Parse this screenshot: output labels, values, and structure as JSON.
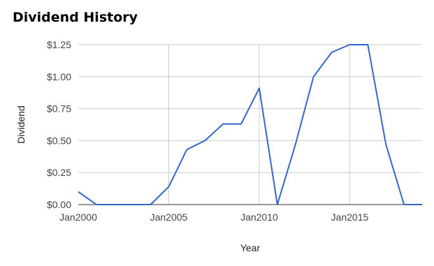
{
  "chart_data": {
    "type": "line",
    "title": "Dividend History",
    "xlabel": "Year",
    "ylabel": "Dividend",
    "ylim": [
      0,
      1.25
    ],
    "xlim": [
      2000,
      2019
    ],
    "y_ticks": [
      {
        "value": 0,
        "label": "$0.00"
      },
      {
        "value": 0.25,
        "label": "$0.25"
      },
      {
        "value": 0.5,
        "label": "$0.50"
      },
      {
        "value": 0.75,
        "label": "$0.75"
      },
      {
        "value": 1.0,
        "label": "$1.00"
      },
      {
        "value": 1.25,
        "label": "$1.25"
      }
    ],
    "x_ticks": [
      {
        "value": 2000,
        "label": "Jan2000"
      },
      {
        "value": 2005,
        "label": "Jan2005"
      },
      {
        "value": 2010,
        "label": "Jan2010"
      },
      {
        "value": 2015,
        "label": "Jan2015"
      }
    ],
    "grid": true,
    "series": [
      {
        "color": "#3366cc",
        "x": [
          2000,
          2001,
          2002,
          2003,
          2004,
          2005,
          2006,
          2007,
          2008,
          2009,
          2010,
          2011,
          2012,
          2013,
          2014,
          2015,
          2016,
          2017,
          2018,
          2019
        ],
        "values": [
          0.1,
          0.0,
          0.0,
          0.0,
          0.0,
          0.14,
          0.43,
          0.5,
          0.63,
          0.63,
          0.91,
          0.0,
          0.47,
          1.0,
          1.19,
          1.25,
          1.25,
          0.47,
          0.0,
          0.0
        ]
      }
    ]
  }
}
